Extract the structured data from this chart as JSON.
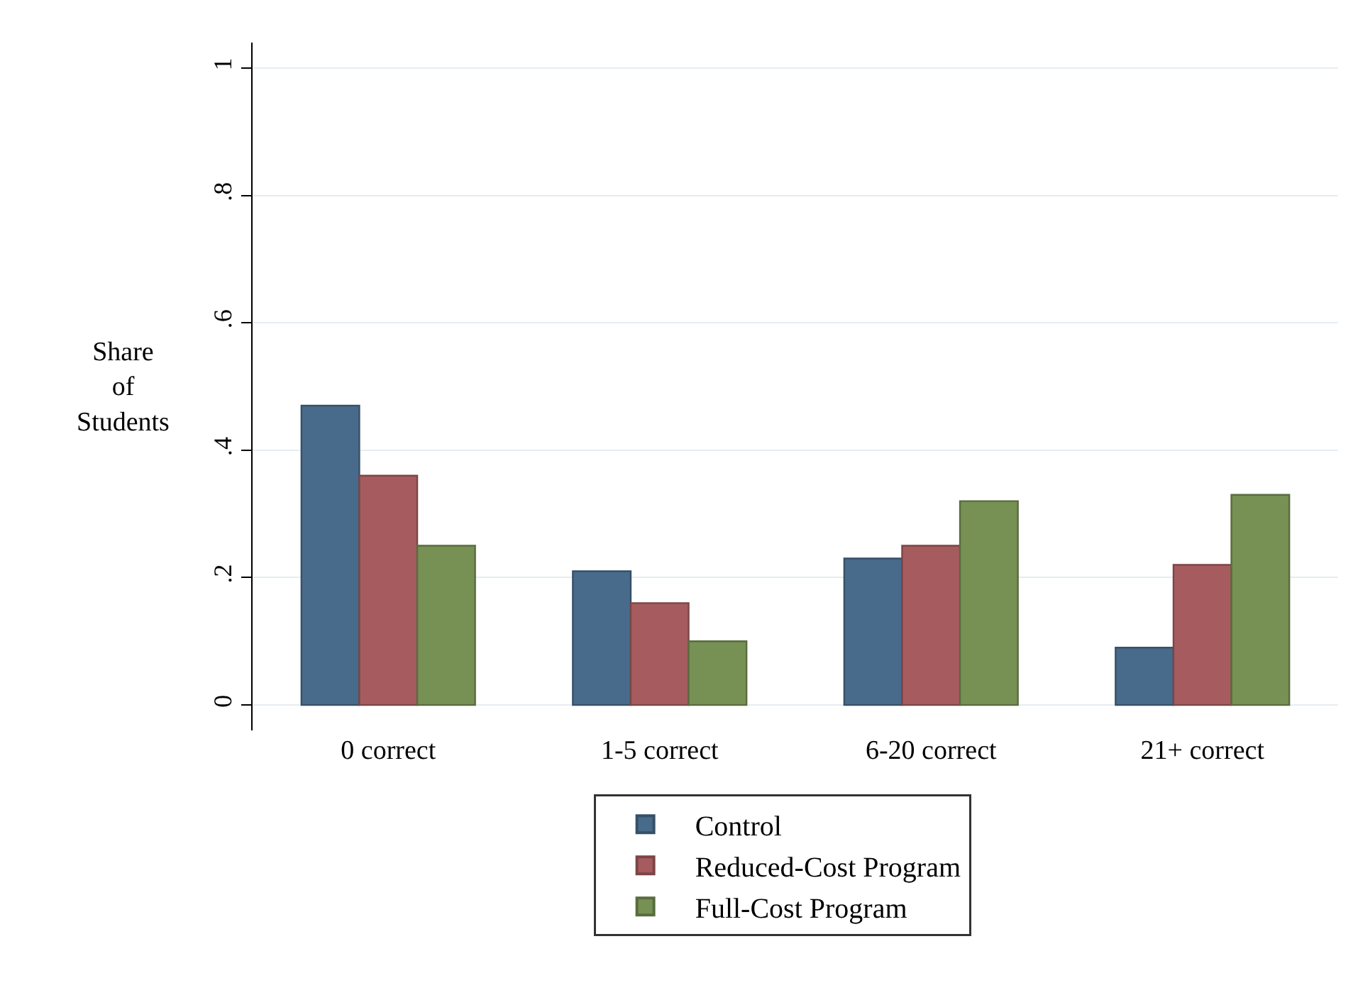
{
  "chart_data": {
    "type": "bar",
    "ylabel": "Share of Students",
    "categories": [
      "0 correct",
      "1-5 correct",
      "6-20 correct",
      "21+ correct"
    ],
    "series": [
      {
        "name": "Control",
        "color": "#486b8b",
        "values": [
          0.47,
          0.21,
          0.23,
          0.09
        ]
      },
      {
        "name": "Reduced-Cost Program",
        "color": "#a65c5f",
        "values": [
          0.36,
          0.16,
          0.25,
          0.22
        ]
      },
      {
        "name": "Full-Cost Program",
        "color": "#779053",
        "values": [
          0.25,
          0.1,
          0.32,
          0.33
        ]
      }
    ],
    "ylim": [
      -0.04,
      1.04
    ],
    "yticks": [
      0,
      {
        "value": 0.2,
        "label": ".2"
      },
      {
        "value": 0.4,
        "label": ".4"
      },
      {
        "value": 0.6,
        "label": ".6"
      },
      {
        "value": 0.8,
        "label": ".8"
      },
      1
    ],
    "grid": "y",
    "legend": "bottom"
  }
}
